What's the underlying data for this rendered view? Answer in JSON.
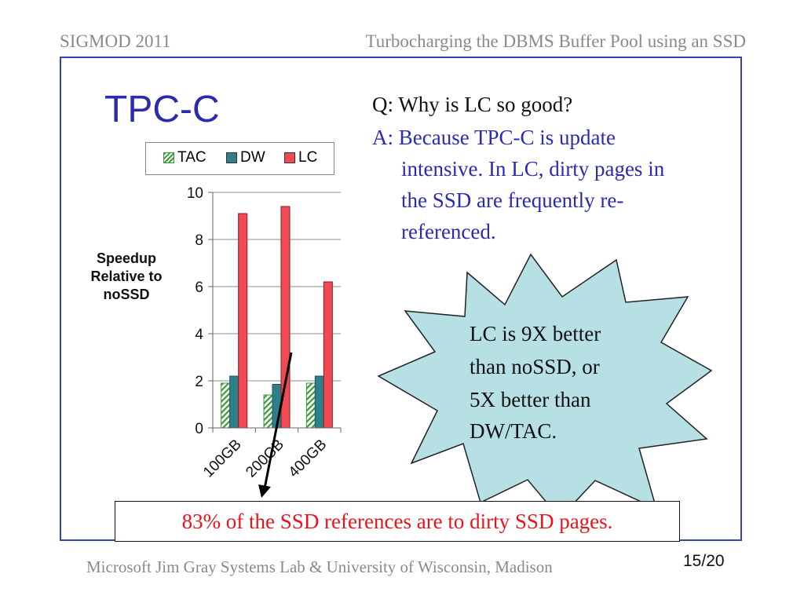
{
  "header": {
    "conference": "SIGMOD 2011",
    "talk_title": "Turbocharging the DBMS Buffer Pool using an SSD"
  },
  "slide": {
    "title": "TPC-C",
    "question": "Q: Why is LC so good?",
    "answer_lines": [
      "A: Because TPC-C is update",
      "intensive. In LC, dirty pages in",
      "the SSD are frequently re-",
      "referenced."
    ],
    "star_lines": [
      "LC is 9X better",
      "than noSSD, or",
      "5X better than",
      "DW/TAC."
    ],
    "note": "83% of the SSD references are to dirty SSD pages."
  },
  "footer": {
    "text": "Microsoft Jim Gray Systems Lab & University of Wisconsin, Madison",
    "page": "15/20"
  },
  "colors": {
    "title_blue": "#2b2bb0",
    "frame_blue": "#3344aa",
    "note_red": "#e8141c",
    "star_fill": "#b6e0e4",
    "tac_green": "#3a9a3a",
    "dw_teal": "#2d7f8a",
    "lc_red": "#f04a55"
  },
  "chart_data": {
    "type": "bar",
    "categories": [
      "100GB",
      "200GB",
      "400GB"
    ],
    "series": [
      {
        "name": "TAC",
        "values": [
          1.9,
          1.4,
          1.9
        ]
      },
      {
        "name": "DW",
        "values": [
          2.2,
          1.85,
          2.2
        ]
      },
      {
        "name": "LC",
        "values": [
          9.1,
          9.4,
          6.2
        ]
      }
    ],
    "ylabel_lines": [
      "Speedup",
      "Relative to",
      "noSSD"
    ],
    "ylim": [
      0,
      10
    ],
    "yticks": [
      0,
      2,
      4,
      6,
      8,
      10
    ],
    "grid": true,
    "legend_position": "top"
  }
}
